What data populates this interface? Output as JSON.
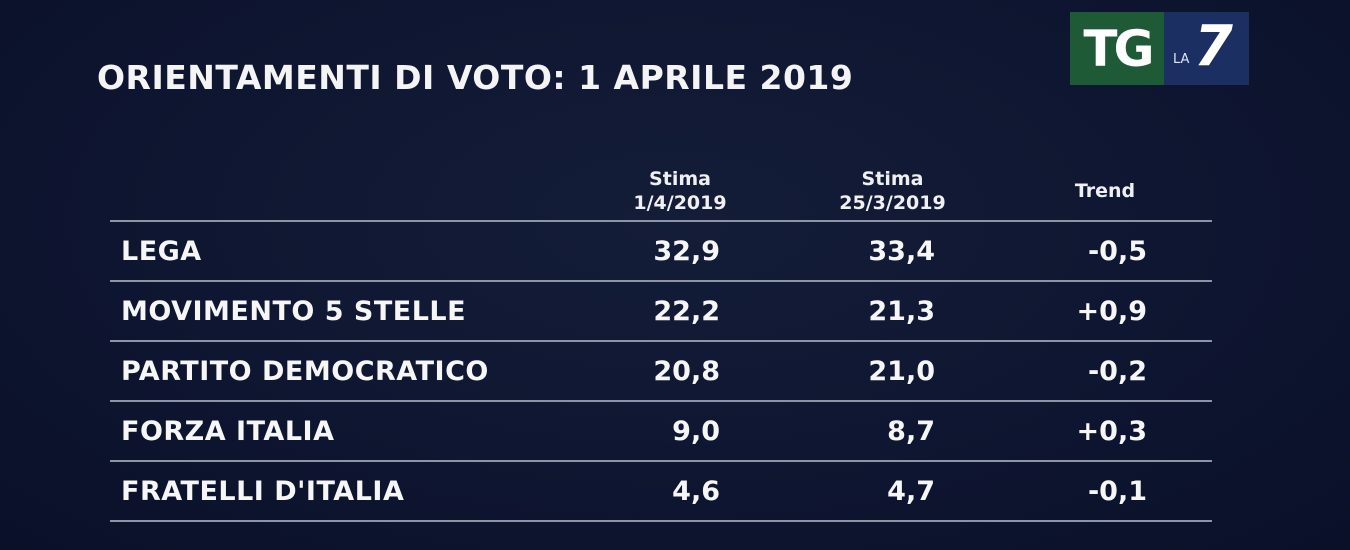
{
  "title": "ORIENTAMENTI DI VOTO: 1 APRILE 2019",
  "logo": {
    "left_text": "TG",
    "la_text": "LA",
    "seven_text": "7",
    "colors": {
      "tg_bg": "#1e5a36",
      "la7_bg": "#1b2f63"
    }
  },
  "chart_data": {
    "type": "table",
    "columns": [
      {
        "line1": "",
        "line2": ""
      },
      {
        "line1": "Stima",
        "line2": "1/4/2019"
      },
      {
        "line1": "Stima",
        "line2": "25/3/2019"
      },
      {
        "line1": "Trend",
        "line2": ""
      }
    ],
    "rows": [
      {
        "party": "LEGA",
        "stima_1_4": "32,9",
        "stima_25_3": "33,4",
        "trend": "-0,5"
      },
      {
        "party": "MOVIMENTO 5 STELLE",
        "stima_1_4": "22,2",
        "stima_25_3": "21,3",
        "trend": "+0,9"
      },
      {
        "party": "PARTITO DEMOCRATICO",
        "stima_1_4": "20,8",
        "stima_25_3": "21,0",
        "trend": "-0,2"
      },
      {
        "party": "FORZA ITALIA",
        "stima_1_4": "9,0",
        "stima_25_3": "8,7",
        "trend": "+0,3"
      },
      {
        "party": "FRATELLI D'ITALIA",
        "stima_1_4": "4,6",
        "stima_25_3": "4,7",
        "trend": "-0,1"
      }
    ]
  }
}
